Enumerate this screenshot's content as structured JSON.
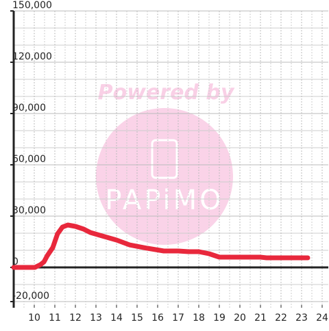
{
  "chart_data": {
    "type": "line",
    "watermark": {
      "line1": "Powered by",
      "line2": "PAPiMO"
    },
    "x": [
      9,
      10.03,
      10.3,
      10.47,
      10.63,
      10.9,
      11.13,
      11.37,
      11.63,
      12,
      12.4,
      12.73,
      13.3,
      14,
      14.63,
      15.5,
      16.3,
      17,
      17.5,
      18,
      18.5,
      19,
      20,
      21,
      21.3,
      22.3,
      23.3
    ],
    "series": [
      {
        "color": "#e8283c",
        "values": [
          0,
          0,
          1600,
          3200,
          6800,
          11600,
          19600,
          23600,
          24800,
          24000,
          22400,
          20400,
          18400,
          16000,
          13200,
          11200,
          9600,
          9600,
          9200,
          9200,
          8000,
          6000,
          6000,
          6000,
          5600,
          5600,
          5600
        ]
      }
    ],
    "xlim": [
      9,
      24.3
    ],
    "ylim": [
      -23600,
      150000
    ],
    "xticks": [
      10,
      11,
      12,
      13,
      14,
      15,
      16,
      17,
      18,
      19,
      20,
      21,
      22,
      23,
      24
    ],
    "minor_xticks": [
      9.5,
      10.5,
      11.5,
      12.5,
      13.5,
      14.5,
      15.5,
      16.5,
      17.5,
      18.5,
      19.5,
      20.5,
      21.5,
      22.5,
      23.5
    ],
    "yticks": [
      {
        "value": -20000,
        "label": "-20,000"
      },
      0,
      {
        "value": 30000,
        "label": "30,000"
      },
      {
        "value": 60000,
        "label": "60,000"
      },
      {
        "value": 90000,
        "label": "90,000"
      },
      {
        "value": 120000,
        "label": "120,000"
      },
      {
        "value": 150000,
        "label": "150,000"
      }
    ],
    "minor_yticks": [
      -10000,
      10000,
      20000,
      40000,
      50000,
      70000,
      80000,
      100000,
      110000,
      130000,
      140000
    ],
    "grid": true
  }
}
